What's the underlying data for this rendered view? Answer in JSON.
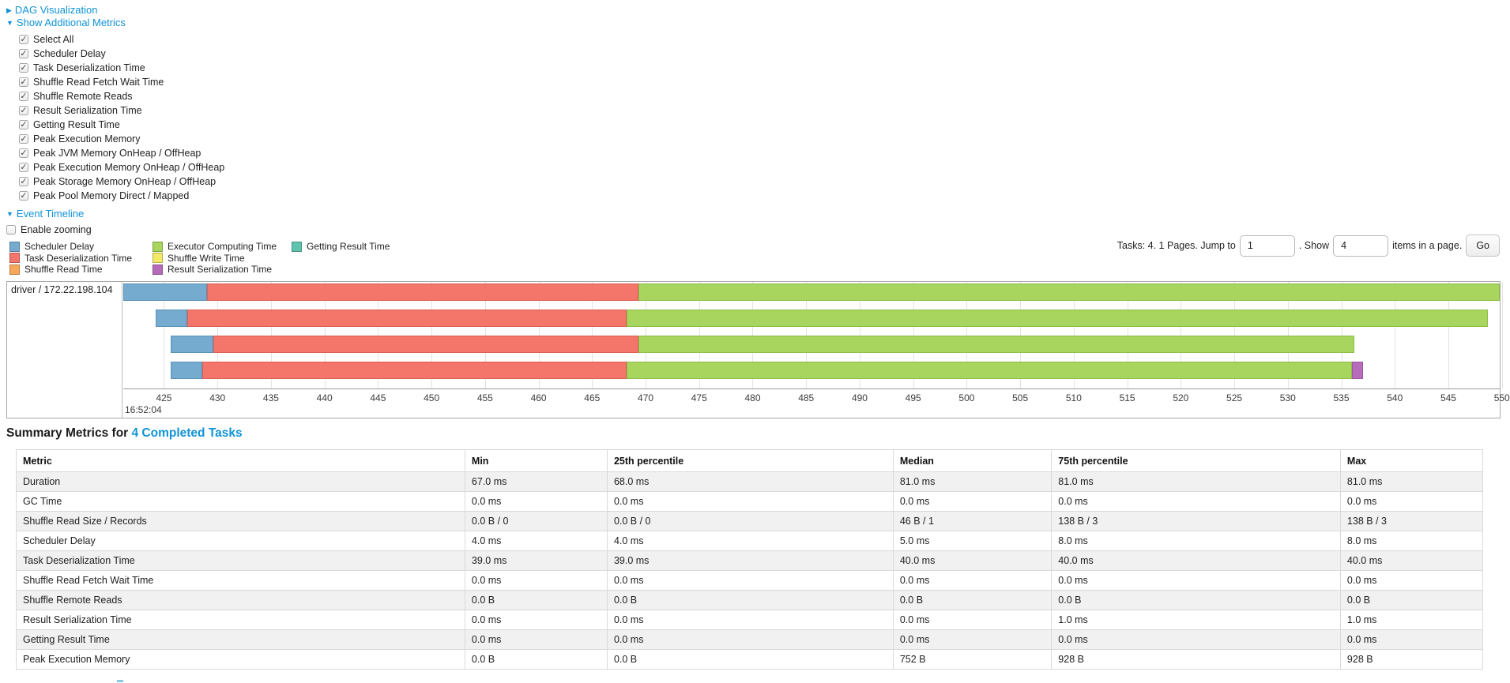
{
  "controls": {
    "dag": {
      "arrow": "▶",
      "label": "DAG Visualization"
    },
    "metrics": {
      "arrow": "▼",
      "label": "Show Additional Metrics"
    },
    "metric_checkboxes": [
      "Select All",
      "Scheduler Delay",
      "Task Deserialization Time",
      "Shuffle Read Fetch Wait Time",
      "Shuffle Remote Reads",
      "Result Serialization Time",
      "Getting Result Time",
      "Peak Execution Memory",
      "Peak JVM Memory OnHeap / OffHeap",
      "Peak Execution Memory OnHeap / OffHeap",
      "Peak Storage Memory OnHeap / OffHeap",
      "Peak Pool Memory Direct / Mapped"
    ],
    "event_timeline": {
      "arrow": "▼",
      "label": "Event Timeline"
    },
    "enable_zooming": {
      "label": "Enable zooming",
      "checked": false
    }
  },
  "legend": {
    "columns": [
      [
        {
          "label": "Scheduler Delay",
          "color": "#74abce"
        },
        {
          "label": "Task Deserialization Time",
          "color": "#f4756a"
        },
        {
          "label": "Shuffle Read Time",
          "color": "#f9a75b"
        }
      ],
      [
        {
          "label": "Executor Computing Time",
          "color": "#a7d55e"
        },
        {
          "label": "Shuffle Write Time",
          "color": "#f2ea66"
        },
        {
          "label": "Result Serialization Time",
          "color": "#b76cba"
        }
      ],
      [
        {
          "label": "Getting Result Time",
          "color": "#5fc3ad"
        }
      ]
    ]
  },
  "pagination": {
    "tasks_text": "Tasks: 4. 1 Pages. Jump to",
    "jump_value": "1",
    "show_text": ". Show",
    "show_value": "4",
    "suffix_text": "items in a page.",
    "go_label": "Go"
  },
  "chart_data": {
    "type": "timeline",
    "title": "Event Timeline",
    "group_label": "driver / 172.22.198.104",
    "time_label": "16:52:04",
    "axis": {
      "min": 421.2,
      "max": 549.8,
      "tick_start": 425,
      "tick_step": 5,
      "tick_end": 550,
      "unit": "ms of 16:52:04"
    },
    "colors": {
      "scheduler_delay": {
        "fill": "#74abce",
        "border": "#5b93b8"
      },
      "task_deserialization": {
        "fill": "#f4756a",
        "border": "#dd5f55"
      },
      "executor_computing": {
        "fill": "#a7d55e",
        "border": "#8fbd4b"
      },
      "result_serialization": {
        "fill": "#b76cba",
        "border": "#9e55a2"
      }
    },
    "rows": [
      {
        "segments": [
          {
            "type": "scheduler_delay",
            "start": 421.2,
            "end": 429.0
          },
          {
            "type": "task_deserialization",
            "start": 429.0,
            "end": 469.3
          },
          {
            "type": "executor_computing",
            "start": 469.3,
            "end": 549.8
          }
        ]
      },
      {
        "segments": [
          {
            "type": "scheduler_delay",
            "start": 424.2,
            "end": 427.2
          },
          {
            "type": "task_deserialization",
            "start": 427.2,
            "end": 468.2
          },
          {
            "type": "executor_computing",
            "start": 468.2,
            "end": 548.7
          }
        ]
      },
      {
        "segments": [
          {
            "type": "scheduler_delay",
            "start": 425.6,
            "end": 429.6
          },
          {
            "type": "task_deserialization",
            "start": 429.6,
            "end": 469.3
          },
          {
            "type": "executor_computing",
            "start": 469.3,
            "end": 536.2
          }
        ]
      },
      {
        "segments": [
          {
            "type": "scheduler_delay",
            "start": 425.6,
            "end": 428.6
          },
          {
            "type": "task_deserialization",
            "start": 428.6,
            "end": 468.2
          },
          {
            "type": "executor_computing",
            "start": 468.2,
            "end": 536.0
          },
          {
            "type": "result_serialization",
            "start": 536.0,
            "end": 537.0
          }
        ]
      }
    ]
  },
  "summary": {
    "heading_prefix": "Summary Metrics for ",
    "heading_link": "4 Completed Tasks",
    "table": {
      "col_widths": [
        30.6,
        9.7,
        19.5,
        10.8,
        19.7,
        9.7
      ],
      "headers": [
        "Metric",
        "Min",
        "25th percentile",
        "Median",
        "75th percentile",
        "Max"
      ],
      "rows": [
        [
          "Duration",
          "67.0 ms",
          "68.0 ms",
          "81.0 ms",
          "81.0 ms",
          "81.0 ms"
        ],
        [
          "GC Time",
          "0.0 ms",
          "0.0 ms",
          "0.0 ms",
          "0.0 ms",
          "0.0 ms"
        ],
        [
          "Shuffle Read Size / Records",
          "0.0 B / 0",
          "0.0 B / 0",
          "46 B / 1",
          "138 B / 3",
          "138 B / 3"
        ],
        [
          "Scheduler Delay",
          "4.0 ms",
          "4.0 ms",
          "5.0 ms",
          "8.0 ms",
          "8.0 ms"
        ],
        [
          "Task Deserialization Time",
          "39.0 ms",
          "39.0 ms",
          "40.0 ms",
          "40.0 ms",
          "40.0 ms"
        ],
        [
          "Shuffle Read Fetch Wait Time",
          "0.0 ms",
          "0.0 ms",
          "0.0 ms",
          "0.0 ms",
          "0.0 ms"
        ],
        [
          "Shuffle Remote Reads",
          "0.0 B",
          "0.0 B",
          "0.0 B",
          "0.0 B",
          "0.0 B"
        ],
        [
          "Result Serialization Time",
          "0.0 ms",
          "0.0 ms",
          "0.0 ms",
          "1.0 ms",
          "1.0 ms"
        ],
        [
          "Getting Result Time",
          "0.0 ms",
          "0.0 ms",
          "0.0 ms",
          "0.0 ms",
          "0.0 ms"
        ],
        [
          "Peak Execution Memory",
          "0.0 B",
          "0.0 B",
          "752 B",
          "928 B",
          "928 B"
        ]
      ]
    }
  }
}
